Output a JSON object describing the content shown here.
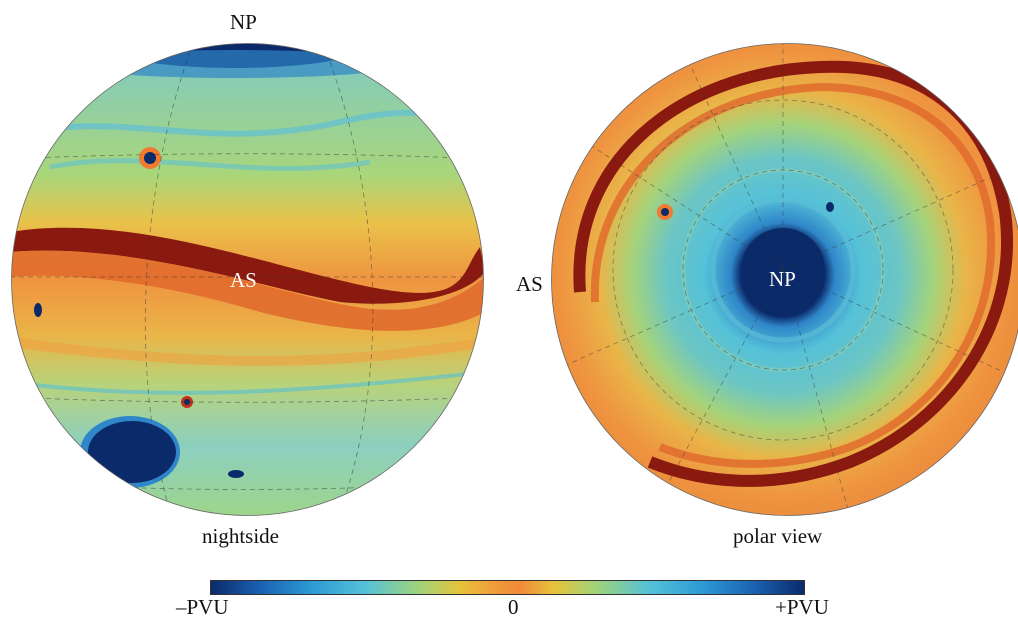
{
  "left_globe": {
    "top_label": "NP",
    "center_label": "AS",
    "caption": "nightside"
  },
  "right_globe": {
    "side_label": "AS",
    "center_label": "NP",
    "caption": "polar view"
  },
  "colorbar": {
    "min_label": "–PVU",
    "mid_label": "0",
    "max_label": "+PVU"
  },
  "colors": {
    "deep_blue": "#0b2a6a",
    "cyan": "#55c1d8",
    "green": "#9fd37a",
    "orange": "#f19a3a",
    "dark_red": "#8a1a10"
  }
}
